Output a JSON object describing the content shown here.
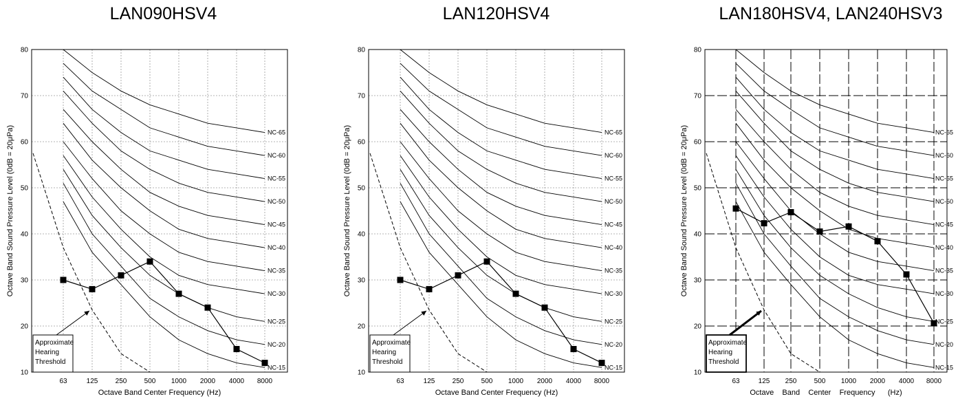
{
  "chart_data": [
    {
      "type": "line",
      "title": "LAN090HSV4",
      "xlabel": "Octave Band Center Frequency (Hz)",
      "ylabel": "Octave Band Sound Pressure Level (0dB = 20μPa)",
      "ylim": [
        10,
        80
      ],
      "y_ticks": [
        "10",
        "20",
        "30",
        "40",
        "50",
        "60",
        "70",
        "80"
      ],
      "categories": [
        "63",
        "125",
        "250",
        "500",
        "1000",
        "2000",
        "4000",
        "8000"
      ],
      "grid": "dotted",
      "annotation": [
        "Approximate",
        "Hearing",
        "Threshold"
      ],
      "series": [
        {
          "values": [
            30,
            28,
            31,
            34,
            27,
            24,
            15,
            12
          ]
        }
      ]
    },
    {
      "type": "line",
      "title": "LAN120HSV4",
      "xlabel": "Octave Band Center Frequency (Hz)",
      "ylabel": "Octave Band Sound Pressure Level (0dB = 20μPa)",
      "ylim": [
        10,
        80
      ],
      "y_ticks": [
        "10",
        "20",
        "30",
        "40",
        "50",
        "60",
        "70",
        "80"
      ],
      "categories": [
        "63",
        "125",
        "250",
        "500",
        "1000",
        "2000",
        "4000",
        "8000"
      ],
      "grid": "dotted",
      "annotation": [
        "Approximate",
        "Hearing",
        "Threshold"
      ],
      "series": [
        {
          "values": [
            30,
            28,
            31,
            34,
            27,
            24,
            15,
            12
          ]
        }
      ]
    },
    {
      "type": "line",
      "title": "LAN180HSV4, LAN240HSV3",
      "xlabel": "Octave    Band    Center    Frequency      (Hz)",
      "ylabel": "Octave Band Sound Pressure Level (0dB = 20μPa)",
      "ylim": [
        10,
        80
      ],
      "y_ticks": [
        "10",
        "20",
        "30",
        "40",
        "50",
        "60",
        "70",
        "80"
      ],
      "categories": [
        "63",
        "125",
        "250",
        "500",
        "1000",
        "2000",
        "4000",
        "8000"
      ],
      "grid": "dashed",
      "annotation": [
        "Approximate",
        "Hearing",
        "Threshold"
      ],
      "series": [
        {
          "values": [
            45.5,
            42.3,
            44.7,
            40.5,
            41.6,
            38.4,
            31.2,
            20.6
          ]
        }
      ]
    }
  ],
  "nc_curves": [
    {
      "label": "NC-65",
      "values": [
        80,
        75,
        71,
        68,
        66,
        64,
        63,
        62
      ]
    },
    {
      "label": "NC-60",
      "values": [
        77,
        71,
        67,
        63,
        61,
        59,
        58,
        57
      ]
    },
    {
      "label": "NC-55",
      "values": [
        74,
        67,
        62,
        58,
        56,
        54,
        53,
        52
      ]
    },
    {
      "label": "NC-50",
      "values": [
        71,
        64,
        58,
        54,
        51,
        49,
        48,
        47
      ]
    },
    {
      "label": "NC-45",
      "values": [
        67,
        60,
        54,
        49,
        46,
        44,
        43,
        42
      ]
    },
    {
      "label": "NC-40",
      "values": [
        64,
        56,
        50,
        45,
        41,
        39,
        38,
        37
      ]
    },
    {
      "label": "NC-35",
      "values": [
        60,
        52,
        45,
        40,
        36,
        34,
        33,
        32
      ]
    },
    {
      "label": "NC-30",
      "values": [
        57,
        48,
        41,
        35,
        31,
        29,
        28,
        27
      ]
    },
    {
      "label": "NC-25",
      "values": [
        54,
        44,
        37,
        31,
        27,
        24,
        22,
        21
      ]
    },
    {
      "label": "NC-20",
      "values": [
        51,
        40,
        33,
        26,
        22,
        19,
        17,
        16
      ]
    },
    {
      "label": "NC-15",
      "values": [
        47,
        36,
        29,
        22,
        17,
        14,
        12,
        11
      ]
    }
  ],
  "threshold_values": [
    37,
    23.5,
    14,
    10
  ]
}
